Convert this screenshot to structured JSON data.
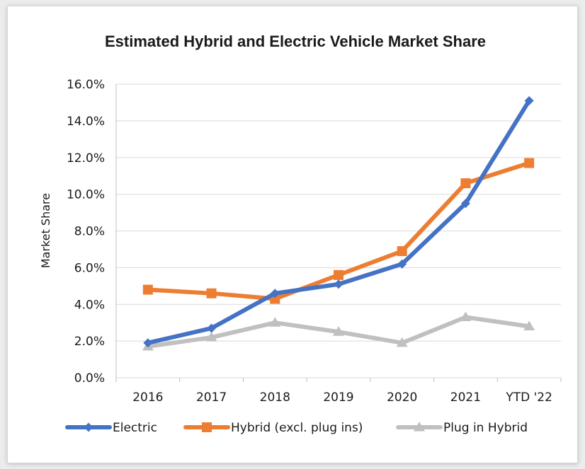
{
  "chart_data": {
    "type": "line",
    "title": "Estimated Hybrid and Electric Vehicle Market Share",
    "xlabel": "",
    "ylabel": "Market Share",
    "categories": [
      "2016",
      "2017",
      "2018",
      "2019",
      "2020",
      "2021",
      "YTD '22"
    ],
    "y_ticks": [
      "0.0%",
      "2.0%",
      "4.0%",
      "6.0%",
      "8.0%",
      "10.0%",
      "12.0%",
      "14.0%",
      "16.0%"
    ],
    "ylim": [
      0,
      16
    ],
    "grid": true,
    "legend_position": "bottom",
    "series": [
      {
        "name": "Electric",
        "color": "#4472C4",
        "marker": "diamond",
        "values": [
          1.9,
          2.7,
          4.6,
          5.1,
          6.2,
          9.5,
          15.1
        ]
      },
      {
        "name": "Hybrid (excl. plug ins)",
        "color": "#ED7D31",
        "marker": "square",
        "values": [
          4.8,
          4.6,
          4.3,
          5.6,
          6.9,
          10.6,
          11.7
        ]
      },
      {
        "name": "Plug in Hybrid",
        "color": "#C0C0C0",
        "marker": "triangle",
        "values": [
          1.7,
          2.2,
          3.0,
          2.5,
          1.9,
          3.3,
          2.8
        ]
      }
    ]
  }
}
